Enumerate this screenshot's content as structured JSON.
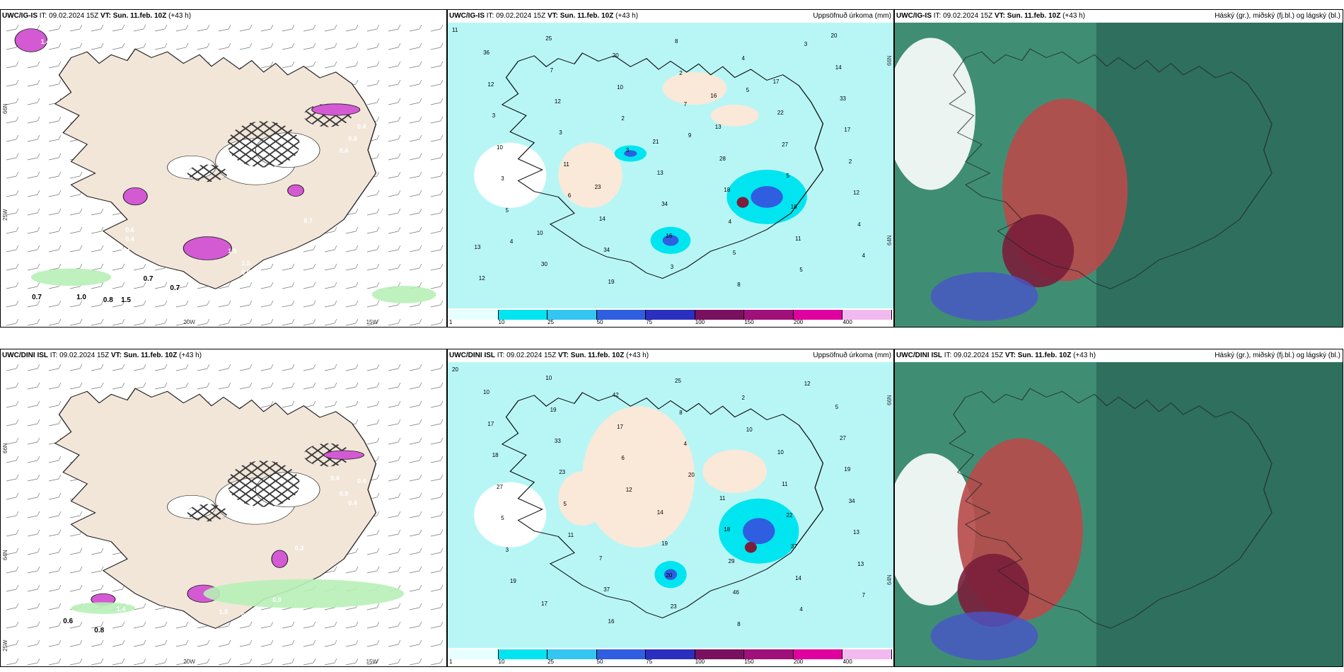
{
  "colors": {
    "land_beige": "#f2e6d9",
    "precip_magenta": "#d45ad4",
    "cyan": "#8ef3f3",
    "cyan2": "#00e5f0",
    "blue": "#2f5fe0",
    "green_sea": "#3f8e74",
    "dark_green": "#2f6f5e",
    "red_cloud": "#b84a4a",
    "maroon": "#7a1e3c"
  },
  "panels": [
    {
      "id": "ig-precip-type",
      "title": {
        "model": "UWC/IG-IS",
        "it": " IT: 09.02.2024 15Z ",
        "vt_label": "VT:",
        "vt_value": " Sun. 11.feb. 10Z",
        "lead": " (+43 h)"
      },
      "right_label": "",
      "coords": {
        "lat_left_1": "66N",
        "lat_left_2": "25W",
        "lon_bottom_1": "20W",
        "lon_bottom_2": "15W"
      },
      "values": [
        "1.7",
        "1.4",
        "0.6",
        "0.4",
        "0.4",
        "1.5",
        "1.5",
        "0.5",
        "0.7",
        "0.7",
        "0.8",
        "1.5",
        "1.0",
        "0.7",
        "0.6",
        "0.4",
        "0.7",
        "0.4"
      ]
    },
    {
      "id": "ig-accum",
      "title": {
        "model": "UWC/IG-IS",
        "it": " IT: 09.02.2024 15Z ",
        "vt_label": "VT:",
        "vt_value": " Sun. 11.feb. 10Z",
        "lead": " (+43 h)"
      },
      "right_label": "Uppsöfnuð úrkoma (mm)",
      "coords": {
        "lat_left_1": "66N",
        "lat_left_2": "64N"
      },
      "values": [
        "11",
        "9",
        "4",
        "5",
        "6",
        "3",
        "3",
        "4",
        "7",
        "5",
        "4",
        "11",
        "5",
        "2",
        "4",
        "2",
        "3",
        "8",
        "3",
        "11",
        "10",
        "12",
        "8",
        "10",
        "5",
        "12",
        "18",
        "20",
        "2",
        "3",
        "3",
        "4",
        "7",
        "5",
        "19",
        "17",
        "16",
        "12",
        "18",
        "25",
        "27",
        "34",
        "33",
        "34",
        "36",
        "28",
        "30",
        "22",
        "14",
        "14",
        "13",
        "12",
        "13",
        "10",
        "17",
        "23",
        "20",
        "21",
        "13",
        "16"
      ]
    },
    {
      "id": "ig-clouds",
      "title": {
        "model": "UWC/IG-IS",
        "it": " IT: 09.02.2024 15Z ",
        "vt_label": "VT:",
        "vt_value": " Sun. 11.feb. 10Z",
        "lead": " (+43 h)"
      },
      "right_label": "Háský (gr.), miðský (fj.bl.) og lágský (bl.)"
    },
    {
      "id": "dini-precip-type",
      "title": {
        "model": "UWC/DINI ISL",
        "it": " IT: 09.02.2024 15Z ",
        "vt_label": "VT:",
        "vt_value": " Sun. 11.feb. 10Z",
        "lead": " (+43 h)"
      },
      "right_label": "",
      "coords": {
        "lat_left_1": "66N",
        "lat_left_2": "64N",
        "lat_left_3": "25W",
        "lon_bottom_1": "20W",
        "lon_bottom_2": "15W"
      },
      "values": [
        "0.2",
        "1.4",
        "0.6",
        "0.8",
        "1.8",
        "0.8",
        "0.5",
        "0.9",
        "0.56",
        "0.4",
        "0.9",
        "0.4",
        "0.4",
        "0.3"
      ]
    },
    {
      "id": "dini-accum",
      "title": {
        "model": "UWC/DINI ISL",
        "it": " IT: 09.02.2024 15Z ",
        "vt_label": "VT:",
        "vt_value": " Sun. 11.feb. 10Z",
        "lead": " (+43 h)"
      },
      "right_label": "Uppsöfnuð úrkoma (mm)",
      "coords": {
        "lat_left_1": "66N",
        "lat_left_2": "64N"
      },
      "values": [
        "20",
        "20",
        "19",
        "10",
        "11",
        "12",
        "12",
        "7",
        "4",
        "3",
        "2",
        "5",
        "4",
        "6",
        "13",
        "8",
        "5",
        "8",
        "23",
        "14",
        "17",
        "13",
        "25",
        "27",
        "46",
        "33",
        "37",
        "42",
        "34",
        "23",
        "18",
        "29",
        "19",
        "22",
        "16",
        "19",
        "20",
        "17",
        "18",
        "10",
        "11",
        "37",
        "27",
        "19",
        "10",
        "11",
        "17",
        "10",
        "7",
        "5",
        "14"
      ]
    },
    {
      "id": "dini-clouds",
      "title": {
        "model": "UWC/DINI ISL",
        "it": " IT: 09.02.2024 15Z ",
        "vt_label": "VT:",
        "vt_value": " Sun. 11.feb. 10Z",
        "lead": " (+43 h)"
      },
      "right_label": "Háský (gr.), miðský (fj.bl.) og lágský (bl.)"
    }
  ],
  "colorbar": {
    "labels": [
      "1",
      "10",
      "25",
      "50",
      "75",
      "100",
      "150",
      "200",
      "400"
    ],
    "colors": [
      "#e6ffff",
      "#00e5f0",
      "#33c6f0",
      "#2f5fe0",
      "#2b2fbf",
      "#7a1060",
      "#a0107a",
      "#e000a0",
      "#f2b8f0"
    ]
  }
}
